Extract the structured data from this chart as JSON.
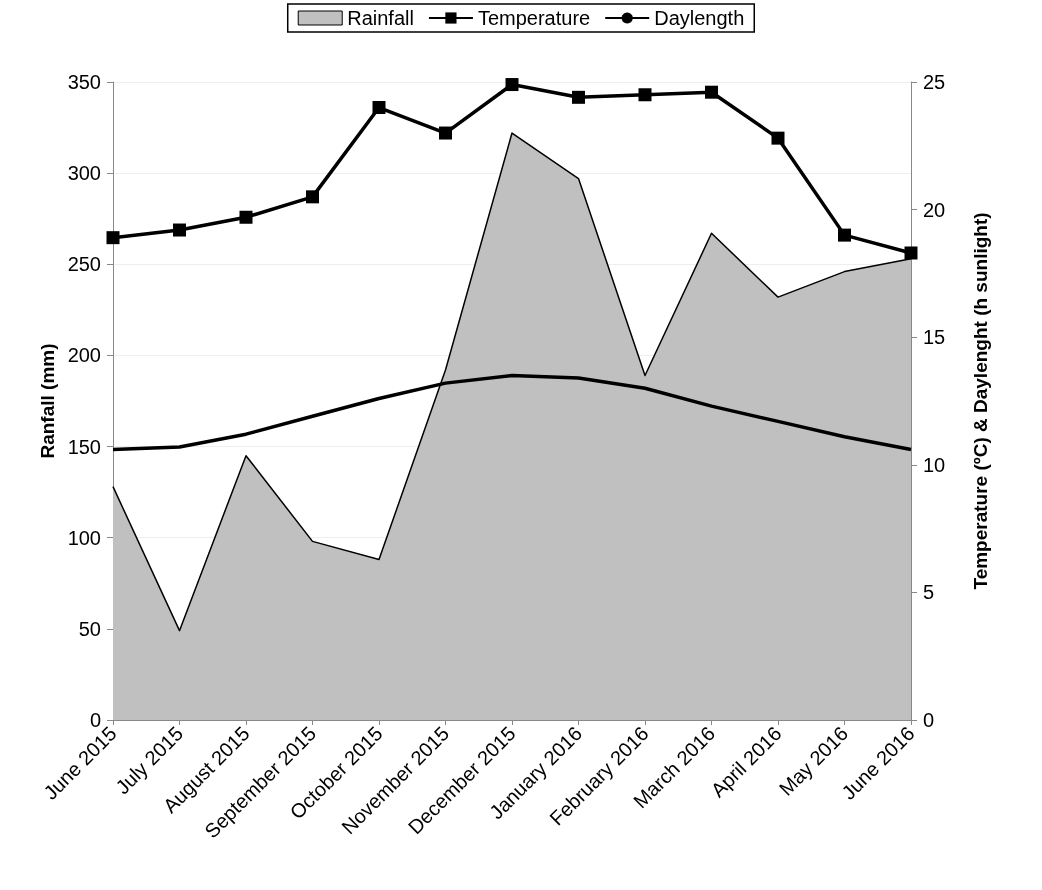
{
  "chart_data": {
    "type": "line",
    "categories": [
      "June 2015",
      "July 2015",
      "August 2015",
      "September 2015",
      "October 2015",
      "November 2015",
      "December 2015",
      "January 2016",
      "February 2016",
      "March 2016",
      "April 2016",
      "May 2016",
      "June 2016"
    ],
    "ylabel": "Ranfall (mm)",
    "y2label": "Temperature (ºC) & Daylenght (h sunlight)",
    "ylim": [
      0,
      350
    ],
    "yticks": [
      0,
      50,
      100,
      150,
      200,
      250,
      300,
      350
    ],
    "y2lim": [
      0,
      25
    ],
    "y2ticks": [
      0,
      5,
      10,
      15,
      20,
      25
    ],
    "grid": "y",
    "legend": "top",
    "series": [
      {
        "name": "Rainfall",
        "type": "area",
        "color": "#c0c0c0",
        "values": [
          128,
          49,
          145,
          98,
          88,
          192,
          322,
          297,
          189,
          267,
          232,
          246,
          253
        ]
      },
      {
        "name": "Temperature",
        "axis": "y2",
        "marker": "square",
        "color": "#000000",
        "values": [
          18.9,
          19.2,
          19.7,
          20.5,
          24.0,
          23.0,
          24.9,
          24.4,
          24.5,
          24.6,
          22.8,
          19.0,
          18.3
        ]
      },
      {
        "name": "Daylength",
        "axis": "y2",
        "marker": "none",
        "color": "#000000",
        "values": [
          10.6,
          10.7,
          11.2,
          11.9,
          12.6,
          13.2,
          13.5,
          13.4,
          13.0,
          12.3,
          11.7,
          11.1,
          10.6
        ]
      }
    ]
  }
}
